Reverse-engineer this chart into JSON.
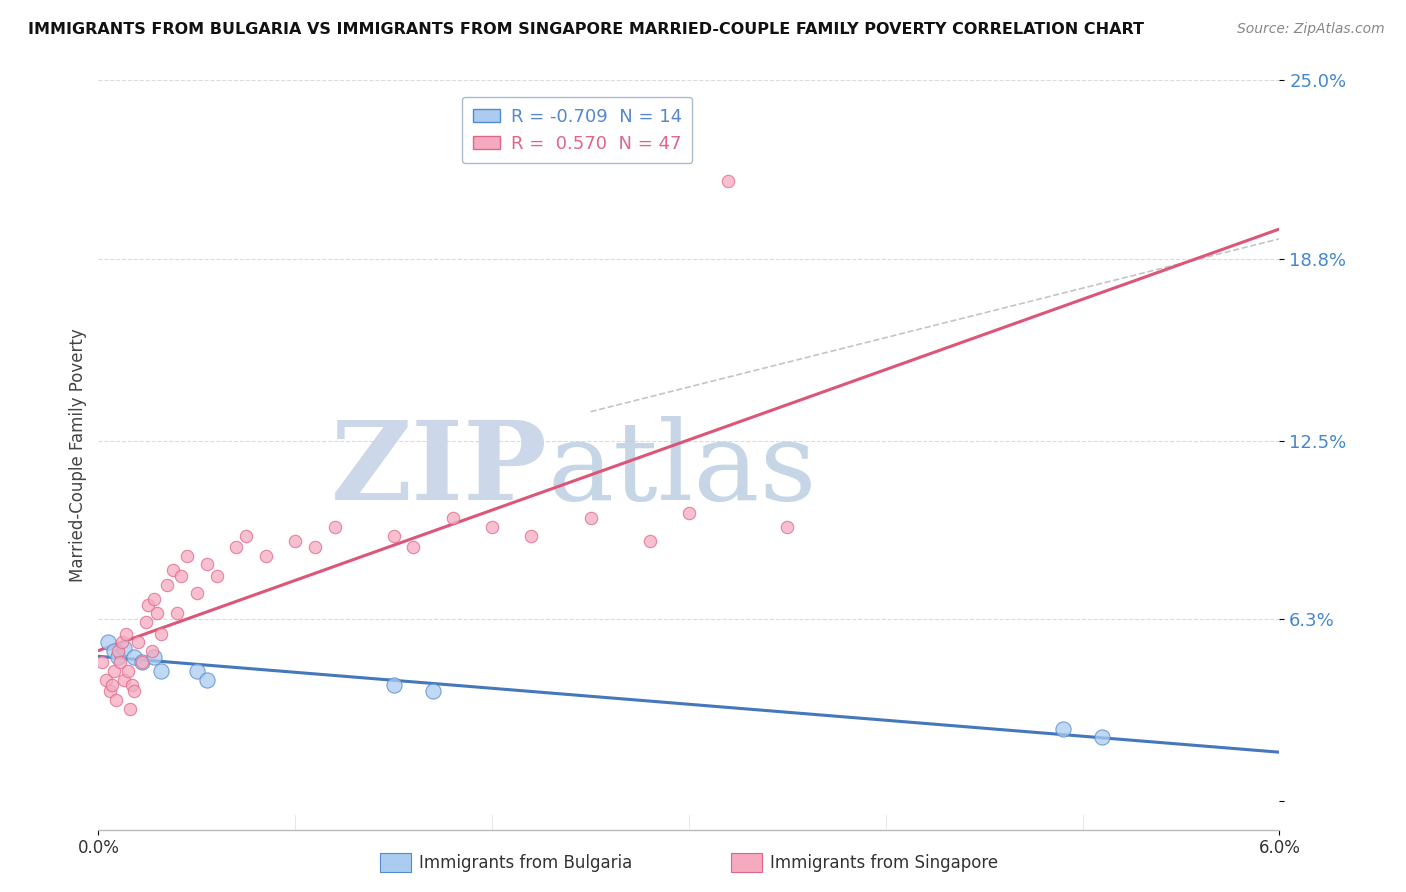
{
  "title": "IMMIGRANTS FROM BULGARIA VS IMMIGRANTS FROM SINGAPORE MARRIED-COUPLE FAMILY POVERTY CORRELATION CHART",
  "source": "Source: ZipAtlas.com",
  "ylabel": "Married-Couple Family Poverty",
  "xlim": [
    0.0,
    6.0
  ],
  "ylim": [
    -1.0,
    25.0
  ],
  "ytick_vals": [
    0.0,
    6.3,
    12.5,
    18.8,
    25.0
  ],
  "ytick_labels": [
    "",
    "6.3%",
    "12.5%",
    "18.8%",
    "25.0%"
  ],
  "xtick_vals": [
    0.0,
    6.0
  ],
  "xtick_labels": [
    "0.0%",
    "6.0%"
  ],
  "legend_labels": [
    "Immigrants from Bulgaria",
    "Immigrants from Singapore"
  ],
  "bulgaria_color": "#aaccf0",
  "singapore_color": "#f5aabf",
  "bulgaria_edge_color": "#5588cc",
  "singapore_edge_color": "#e06688",
  "bulgaria_trend_color": "#4477bb",
  "singapore_trend_color": "#dd5577",
  "R_bulgaria": -0.709,
  "N_bulgaria": 14,
  "R_singapore": 0.57,
  "N_singapore": 47,
  "bulgaria_x": [
    0.05,
    0.08,
    0.1,
    0.13,
    0.18,
    0.22,
    0.28,
    0.32,
    0.5,
    0.55,
    1.5,
    1.7,
    4.9,
    5.1
  ],
  "bulgaria_y": [
    5.5,
    5.2,
    5.0,
    5.3,
    5.0,
    4.8,
    5.0,
    4.5,
    4.5,
    4.2,
    4.0,
    3.8,
    2.5,
    2.2
  ],
  "singapore_x": [
    0.02,
    0.04,
    0.06,
    0.07,
    0.08,
    0.09,
    0.1,
    0.11,
    0.12,
    0.13,
    0.14,
    0.15,
    0.16,
    0.17,
    0.18,
    0.2,
    0.22,
    0.24,
    0.25,
    0.27,
    0.28,
    0.3,
    0.32,
    0.35,
    0.38,
    0.4,
    0.42,
    0.45,
    0.5,
    0.55,
    0.6,
    0.7,
    0.75,
    0.85,
    1.0,
    1.1,
    1.2,
    1.5,
    1.6,
    1.8,
    2.0,
    2.2,
    2.5,
    2.8,
    3.0,
    3.2,
    3.5
  ],
  "singapore_y": [
    4.8,
    4.2,
    3.8,
    4.0,
    4.5,
    3.5,
    5.2,
    4.8,
    5.5,
    4.2,
    5.8,
    4.5,
    3.2,
    4.0,
    3.8,
    5.5,
    4.8,
    6.2,
    6.8,
    5.2,
    7.0,
    6.5,
    5.8,
    7.5,
    8.0,
    6.5,
    7.8,
    8.5,
    7.2,
    8.2,
    7.8,
    8.8,
    9.2,
    8.5,
    9.0,
    8.8,
    9.5,
    9.2,
    8.8,
    9.8,
    9.5,
    9.2,
    9.8,
    9.0,
    10.0,
    21.5,
    9.5
  ],
  "dashed_line_x": [
    2.5,
    6.0
  ],
  "dashed_line_y": [
    13.5,
    19.5
  ],
  "watermark_zip_color": "#c8ddf0",
  "watermark_atlas_color": "#b8d0e8",
  "bg_color": "#ffffff",
  "grid_color": "#cccccc",
  "title_color": "#111111",
  "source_color": "#888888",
  "yticklabel_color": "#4488cc"
}
